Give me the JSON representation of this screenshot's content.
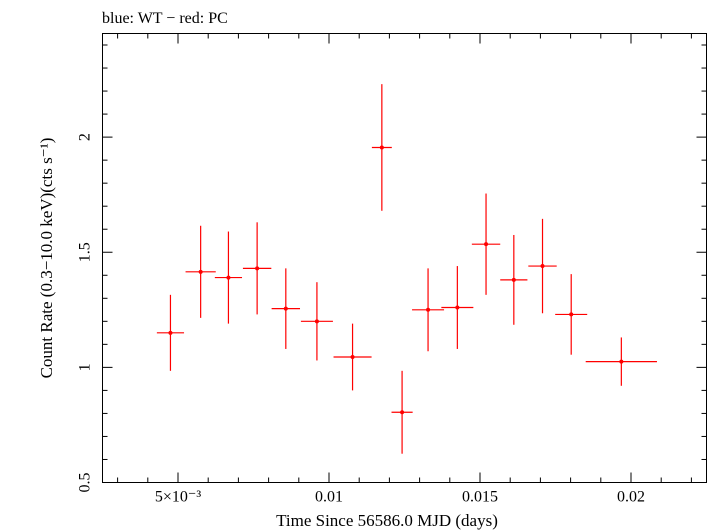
{
  "chart_data": {
    "type": "scatter",
    "title": "blue: WT − red: PC",
    "xlabel": "Time Since 56586.0 MJD (days)",
    "ylabel": "Count Rate (0.3−10.0 keV)(cts s⁻¹)",
    "xlim": [
      0.0025,
      0.0225
    ],
    "ylim": [
      0.5,
      2.45
    ],
    "x_ticks": [
      {
        "value": 0.005,
        "label": "5×10⁻³"
      },
      {
        "value": 0.01,
        "label": "0.01"
      },
      {
        "value": 0.015,
        "label": "0.015"
      },
      {
        "value": 0.02,
        "label": "0.02"
      }
    ],
    "y_ticks": [
      {
        "value": 0.5,
        "label": "0.5"
      },
      {
        "value": 1.0,
        "label": "1"
      },
      {
        "value": 1.5,
        "label": "1.5"
      },
      {
        "value": 2.0,
        "label": "2"
      }
    ],
    "x_minor_step": 0.001,
    "y_minor_step": 0.1,
    "grid": false,
    "legend": "none",
    "series": [
      {
        "color": "#ff0000",
        "points": [
          {
            "x": 0.00475,
            "y": 1.15,
            "xerr": 0.00045,
            "yerr_lo": 0.165,
            "yerr_hi": 0.165
          },
          {
            "x": 0.00575,
            "y": 1.415,
            "xerr": 0.0005,
            "yerr_lo": 0.2,
            "yerr_hi": 0.2
          },
          {
            "x": 0.00667,
            "y": 1.39,
            "xerr": 0.00045,
            "yerr_lo": 0.2,
            "yerr_hi": 0.2
          },
          {
            "x": 0.00762,
            "y": 1.43,
            "xerr": 0.00047,
            "yerr_lo": 0.2,
            "yerr_hi": 0.2
          },
          {
            "x": 0.00857,
            "y": 1.255,
            "xerr": 0.00047,
            "yerr_lo": 0.175,
            "yerr_hi": 0.175
          },
          {
            "x": 0.0096,
            "y": 1.2,
            "xerr": 0.00053,
            "yerr_lo": 0.17,
            "yerr_hi": 0.17
          },
          {
            "x": 0.01078,
            "y": 1.045,
            "xerr": 0.00063,
            "yerr_lo": 0.145,
            "yerr_hi": 0.145
          },
          {
            "x": 0.01175,
            "y": 1.955,
            "xerr": 0.00033,
            "yerr_lo": 0.275,
            "yerr_hi": 0.275
          },
          {
            "x": 0.01242,
            "y": 0.805,
            "xerr": 0.00035,
            "yerr_lo": 0.18,
            "yerr_hi": 0.18
          },
          {
            "x": 0.01328,
            "y": 1.25,
            "xerr": 0.00053,
            "yerr_lo": 0.18,
            "yerr_hi": 0.18
          },
          {
            "x": 0.01425,
            "y": 1.26,
            "xerr": 0.00053,
            "yerr_lo": 0.18,
            "yerr_hi": 0.18
          },
          {
            "x": 0.0152,
            "y": 1.535,
            "xerr": 0.00047,
            "yerr_lo": 0.22,
            "yerr_hi": 0.22
          },
          {
            "x": 0.01612,
            "y": 1.38,
            "xerr": 0.00045,
            "yerr_lo": 0.195,
            "yerr_hi": 0.195
          },
          {
            "x": 0.01707,
            "y": 1.44,
            "xerr": 0.00047,
            "yerr_lo": 0.205,
            "yerr_hi": 0.205
          },
          {
            "x": 0.01802,
            "y": 1.23,
            "xerr": 0.00053,
            "yerr_lo": 0.175,
            "yerr_hi": 0.175
          },
          {
            "x": 0.01968,
            "y": 1.025,
            "xerr": 0.00118,
            "yerr_lo": 0.105,
            "yerr_hi": 0.105
          }
        ]
      }
    ]
  }
}
